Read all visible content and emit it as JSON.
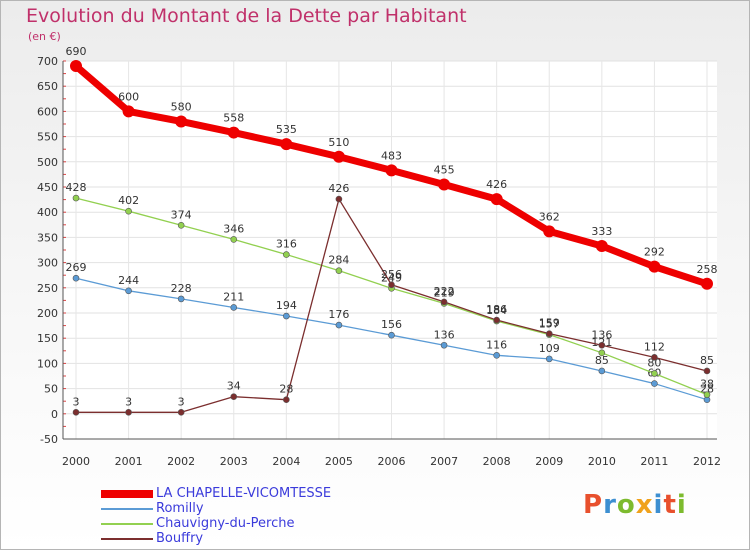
{
  "header": {
    "title": "Evolution du Montant de la Dette par Habitant",
    "unit": "(en €)"
  },
  "logo": {
    "text": "Proxiti",
    "colors": [
      "#e8502d",
      "#3d8fd1",
      "#7dbb2e",
      "#f0a21c",
      "#3d8fd1",
      "#e8502d",
      "#7dbb2e"
    ]
  },
  "chart_data": {
    "type": "line",
    "categories": [
      "2000",
      "2001",
      "2002",
      "2003",
      "2004",
      "2005",
      "2006",
      "2007",
      "2008",
      "2009",
      "2010",
      "2011",
      "2012"
    ],
    "ylim": [
      -50,
      700
    ],
    "ytick_labels": [
      "-50",
      "0",
      "50",
      "100",
      "150",
      "200",
      "250",
      "300",
      "350",
      "400",
      "450",
      "500",
      "550",
      "600",
      "650",
      "700"
    ],
    "grid": true,
    "legend_position": "bottom-left",
    "series": [
      {
        "name": "LA CHAPELLE-VICOMTESSE",
        "color": "#ee0000",
        "values": [
          690,
          600,
          580,
          558,
          535,
          510,
          483,
          455,
          426,
          362,
          333,
          292,
          258
        ]
      },
      {
        "name": "Romilly",
        "color": "#5b9bd5",
        "values": [
          269,
          244,
          228,
          211,
          194,
          176,
          156,
          136,
          116,
          109,
          85,
          60,
          28
        ]
      },
      {
        "name": "Chauvigny-du-Perche",
        "color": "#92d050",
        "values": [
          428,
          402,
          374,
          346,
          316,
          284,
          249,
          219,
          184,
          157,
          121,
          80,
          38
        ]
      },
      {
        "name": "Bouffry",
        "color": "#7b2e2e",
        "values": [
          3,
          3,
          3,
          34,
          28,
          426,
          256,
          222,
          186,
          159,
          136,
          112,
          85
        ]
      }
    ]
  }
}
